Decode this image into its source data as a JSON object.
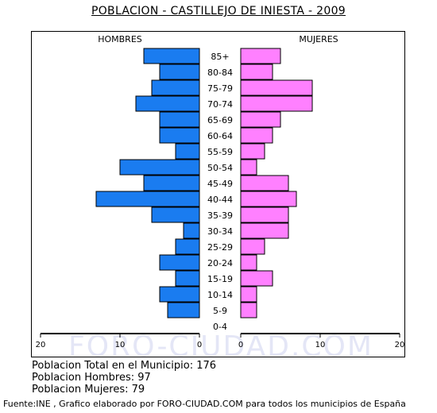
{
  "title": "POBLACION - CASTILLEJO DE INIESTA - 2009",
  "watermark": "FORO-CIUDAD.COM",
  "stats": {
    "total": "Poblacion Total en el Municipio: 176",
    "men": "Poblacion Hombres: 97",
    "women": "Poblacion Mujeres: 79"
  },
  "footer": "Fuente:INE , Grafico elaborado por FORO-CIUDAD.COM para todos los municipios de España",
  "colors": {
    "men": "#1a7cf0",
    "women": "#ff80ff",
    "watermark": "#e4e6f6"
  },
  "chart_data": {
    "type": "bar",
    "orientation": "horizontal",
    "subtype": "population-pyramid",
    "categories": [
      "85+",
      "80-84",
      "75-79",
      "70-74",
      "65-69",
      "60-64",
      "55-59",
      "50-54",
      "45-49",
      "40-44",
      "35-39",
      "30-34",
      "25-29",
      "20-24",
      "15-19",
      "10-14",
      "5-9",
      "0-4"
    ],
    "series": [
      {
        "name": "HOMBRES",
        "values": [
          7,
          5,
          6,
          8,
          5,
          5,
          3,
          10,
          7,
          13,
          6,
          2,
          3,
          5,
          3,
          5,
          4,
          0
        ]
      },
      {
        "name": "MUJERES",
        "values": [
          5,
          4,
          9,
          9,
          5,
          4,
          3,
          2,
          6,
          7,
          6,
          6,
          3,
          2,
          4,
          2,
          2,
          0
        ]
      }
    ],
    "axis_ticks": [
      "20",
      "10",
      "0",
      "0",
      "10",
      "20"
    ],
    "xlim": [
      0,
      20
    ]
  }
}
